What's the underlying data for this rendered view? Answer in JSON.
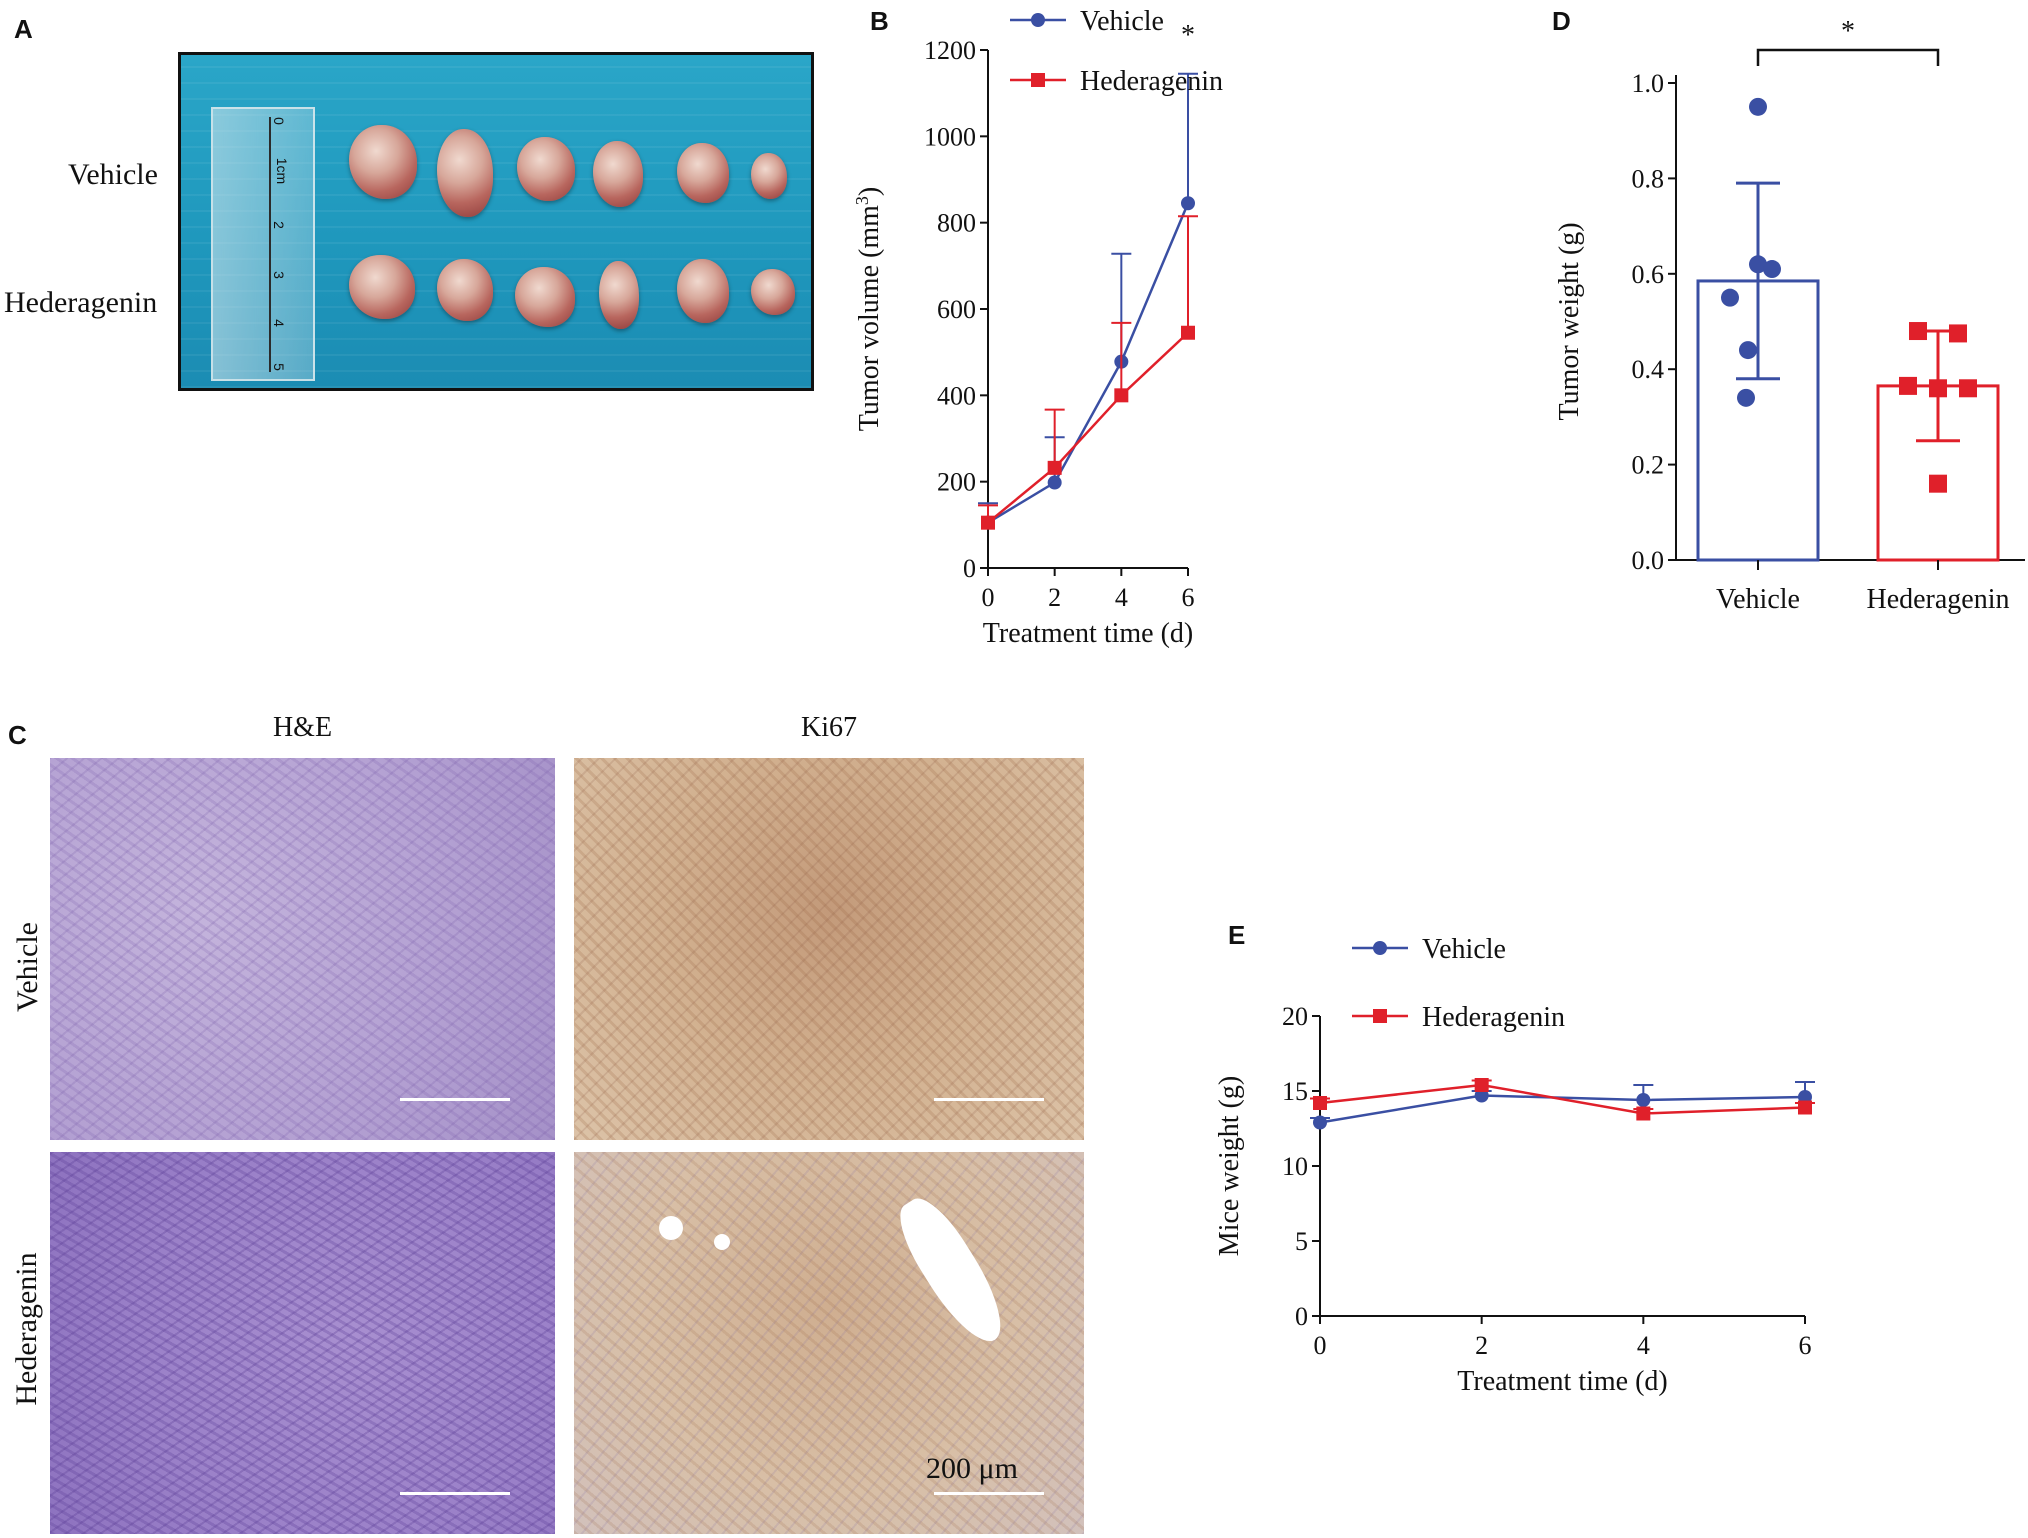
{
  "panels": {
    "a": "A",
    "b": "B",
    "c": "C",
    "d": "D",
    "e": "E"
  },
  "panel_a": {
    "row_labels": [
      "Vehicle",
      "Hederagenin"
    ],
    "ruler_marks": [
      "0",
      "1cm",
      "2",
      "3",
      "4",
      "5"
    ]
  },
  "panel_c": {
    "col_titles": [
      "H&E",
      "Ki67"
    ],
    "row_labels": [
      "Vehicle",
      "Hederagenin"
    ],
    "scale_label": "200 μm"
  },
  "colors": {
    "vehicle": "#3a4fa3",
    "hederagenin": "#e0202a"
  },
  "chart_data": [
    {
      "id": "B",
      "type": "line",
      "xlabel": "Treatment time (d)",
      "ylabel": "Tumor volume (mm",
      "ylabel_sup": "3",
      "ylabel_close": ")",
      "x": [
        0,
        2,
        4,
        6
      ],
      "xlim": [
        0,
        6
      ],
      "ylim": [
        0,
        1200
      ],
      "xticks": [
        0,
        2,
        4,
        6
      ],
      "yticks": [
        0,
        200,
        400,
        600,
        800,
        1000,
        1200
      ],
      "legend_position": "top",
      "series": [
        {
          "name": "Vehicle",
          "marker": "circle",
          "values": [
            105,
            198,
            478,
            845
          ],
          "error": [
            45,
            105,
            250,
            300
          ]
        },
        {
          "name": "Hederagenin",
          "marker": "square",
          "values": [
            105,
            232,
            400,
            545
          ],
          "error": [
            40,
            135,
            168,
            270
          ]
        }
      ],
      "annotations": [
        {
          "x": 6,
          "text": "*"
        }
      ]
    },
    {
      "id": "D",
      "type": "bar",
      "ylabel": "Tumor weight (g)",
      "categories": [
        "Vehicle",
        "Hederagenin"
      ],
      "ylim": [
        0,
        1.0
      ],
      "yticks": [
        "0.0",
        "0.2",
        "0.4",
        "0.6",
        "0.8",
        "1.0"
      ],
      "values": [
        0.585,
        0.365
      ],
      "error": [
        0.205,
        0.115
      ],
      "points": [
        [
          0.95,
          0.62,
          0.61,
          0.55,
          0.44,
          0.34
        ],
        [
          0.48,
          0.475,
          0.365,
          0.36,
          0.36,
          0.16
        ]
      ],
      "significance": "*"
    },
    {
      "id": "E",
      "type": "line",
      "xlabel": "Treatment time (d)",
      "ylabel": "Mice weight (g)",
      "x": [
        0,
        2,
        4,
        6
      ],
      "xlim": [
        0,
        6
      ],
      "ylim": [
        0,
        20
      ],
      "xticks": [
        0,
        2,
        4,
        6
      ],
      "yticks": [
        0,
        5,
        10,
        15,
        20
      ],
      "legend_position": "top",
      "series": [
        {
          "name": "Vehicle",
          "marker": "circle",
          "values": [
            12.9,
            14.7,
            14.4,
            14.6
          ],
          "error": [
            0.3,
            0.3,
            1.0,
            1.0
          ]
        },
        {
          "name": "Hederagenin",
          "marker": "square",
          "values": [
            14.2,
            15.4,
            13.5,
            13.9
          ],
          "error": [
            0.3,
            0.3,
            0.3,
            0.3
          ]
        }
      ]
    }
  ]
}
